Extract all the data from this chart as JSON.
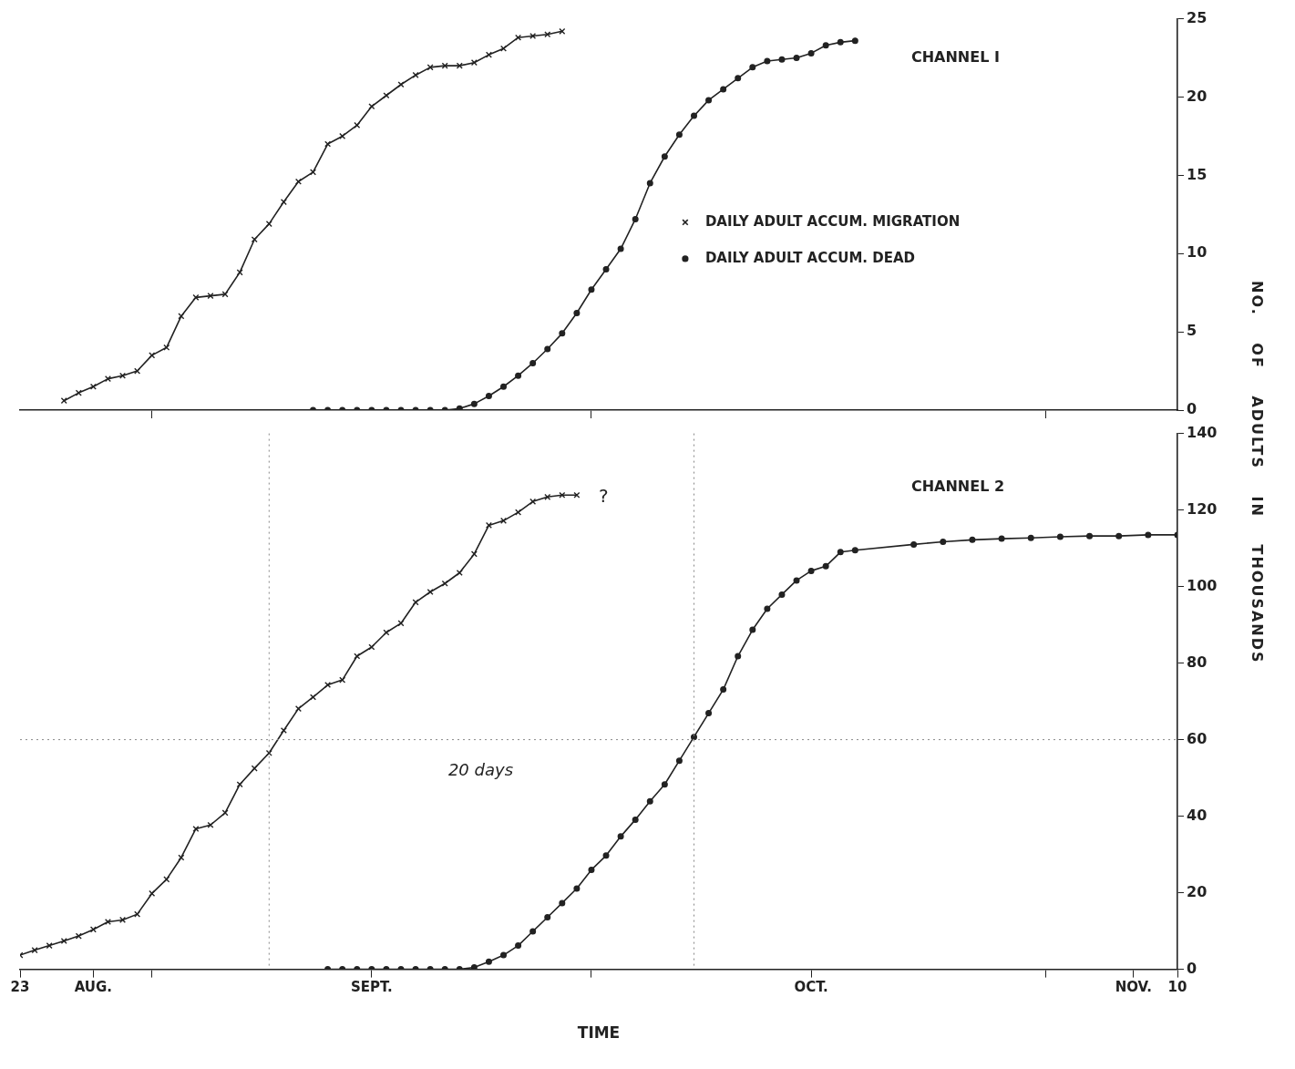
{
  "chart_data": [
    {
      "type": "line",
      "xlim": [
        "--08-23",
        "--11-10"
      ],
      "xticks": [
        {
          "value": "--09-01",
          "label": null
        },
        {
          "value": "--10-01",
          "label": null
        },
        {
          "value": "--11-01",
          "label": null
        }
      ],
      "ylim": [
        0,
        25
      ],
      "yticks": [
        0,
        5,
        10,
        15,
        20,
        25
      ],
      "tick_labels": "y",
      "grid": false,
      "legend": "right",
      "line_style": "solid",
      "annotations": [
        "CHANNEL I"
      ],
      "series": [
        {
          "name": "DAILY ADULT ACCUM. MIGRATION",
          "color": "#222222",
          "marker": "cross",
          "x": [
            "--08-26",
            "--08-27",
            "--08-28",
            "--08-29",
            "--08-30",
            "--08-31",
            "--09-01",
            "--09-02",
            "--09-03",
            "--09-04",
            "--09-05",
            "--09-06",
            "--09-07",
            "--09-08",
            "--09-09",
            "--09-10",
            "--09-11",
            "--09-12",
            "--09-13",
            "--09-14",
            "--09-15",
            "--09-16",
            "--09-17",
            "--09-18",
            "--09-19",
            "--09-20",
            "--09-21",
            "--09-22",
            "--09-23",
            "--09-24",
            "--09-25",
            "--09-26",
            "--09-27",
            "--09-28",
            "--09-29"
          ],
          "values": [
            0.6,
            1.1,
            1.5,
            2.0,
            2.2,
            2.5,
            3.5,
            4.0,
            6.0,
            7.2,
            7.3,
            7.4,
            8.8,
            10.9,
            11.9,
            13.3,
            14.6,
            15.2,
            17.0,
            17.5,
            18.2,
            19.4,
            20.1,
            20.8,
            21.4,
            21.9,
            22.0,
            22.0,
            22.2,
            22.7,
            23.1,
            23.8,
            23.9,
            24.0,
            24.2
          ]
        },
        {
          "name": "DAILY ADULT ACCUM. DEAD",
          "color": "#222222",
          "marker": "circle",
          "x": [
            "--09-12",
            "--09-13",
            "--09-14",
            "--09-15",
            "--09-16",
            "--09-17",
            "--09-18",
            "--09-19",
            "--09-20",
            "--09-21",
            "--09-22",
            "--09-23",
            "--09-24",
            "--09-25",
            "--09-26",
            "--09-27",
            "--09-28",
            "--09-29",
            "--09-30",
            "--10-01",
            "--10-02",
            "--10-03",
            "--10-04",
            "--10-05",
            "--10-06",
            "--10-07",
            "--10-08",
            "--10-09",
            "--10-10",
            "--10-11",
            "--10-12",
            "--10-13",
            "--10-14",
            "--10-15",
            "--10-16",
            "--10-17",
            "--10-18",
            "--10-19"
          ],
          "values": [
            0,
            0,
            0,
            0,
            0,
            0,
            0,
            0,
            0,
            0,
            0.1,
            0.4,
            0.9,
            1.5,
            2.2,
            3.0,
            3.9,
            4.9,
            6.2,
            7.7,
            9.0,
            10.3,
            12.2,
            14.5,
            16.2,
            17.6,
            18.8,
            19.8,
            20.5,
            21.2,
            21.9,
            22.3,
            22.4,
            22.5,
            22.8,
            23.3,
            23.5,
            23.6
          ]
        }
      ]
    },
    {
      "type": "line",
      "xlabel": "TIME",
      "ylabel": "NO. OF ADULTS IN THOUSANDS",
      "xlim": [
        "--08-23",
        "--11-10"
      ],
      "xticks": [
        {
          "value": "--08-23",
          "label": "23"
        },
        {
          "value": "--08-28",
          "label": "AUG."
        },
        {
          "value": "--09-01",
          "label": null
        },
        {
          "value": "--09-16",
          "label": "SEPT."
        },
        {
          "value": "--10-01",
          "label": null
        },
        {
          "value": "--10-16",
          "label": "OCT."
        },
        {
          "value": "--11-01",
          "label": null
        },
        {
          "value": "--11-07",
          "label": "NOV."
        },
        {
          "value": "--11-10",
          "label": "10"
        }
      ],
      "ylim": [
        0,
        140
      ],
      "yticks": [
        0,
        20,
        40,
        60,
        80,
        100,
        120,
        140
      ],
      "grid": false,
      "line_style": "solid",
      "annotations": [
        "CHANNEL 2",
        "20 days",
        "?"
      ],
      "ref_lines": [
        {
          "axis": "y",
          "value": 60,
          "line_style": "dotted",
          "color": "#888888"
        },
        {
          "axis": "x",
          "value": "--09-09",
          "line_style": "dotted",
          "color": "#888888"
        },
        {
          "axis": "x",
          "value": "--10-08",
          "line_style": "dotted",
          "color": "#888888"
        }
      ],
      "series": [
        {
          "color": "#222222",
          "marker": "cross",
          "x": [
            "--08-23",
            "--08-24",
            "--08-25",
            "--08-26",
            "--08-27",
            "--08-28",
            "--08-29",
            "--08-30",
            "--08-31",
            "--09-01",
            "--09-02",
            "--09-03",
            "--09-04",
            "--09-05",
            "--09-06",
            "--09-07",
            "--09-08",
            "--09-09",
            "--09-10",
            "--09-11",
            "--09-12",
            "--09-13",
            "--09-14",
            "--09-15",
            "--09-16",
            "--09-17",
            "--09-18",
            "--09-19",
            "--09-20",
            "--09-21",
            "--09-22",
            "--09-23",
            "--09-24",
            "--09-25",
            "--09-26",
            "--09-27",
            "--09-28",
            "--09-29",
            "--09-30"
          ],
          "values": [
            3.7,
            5.0,
            6.2,
            7.4,
            8.7,
            10.4,
            12.4,
            12.9,
            14.4,
            19.8,
            23.5,
            29.2,
            36.7,
            37.7,
            40.9,
            48.3,
            52.5,
            56.5,
            62.4,
            68.1,
            71.1,
            74.3,
            75.6,
            81.8,
            84.2,
            88.0,
            90.4,
            95.9,
            98.6,
            100.8,
            103.6,
            108.5,
            116.0,
            117.2,
            119.4,
            122.2,
            123.4,
            123.9,
            123.9
          ]
        },
        {
          "color": "#222222",
          "marker": "circle",
          "x": [
            "--09-13",
            "--09-14",
            "--09-15",
            "--09-16",
            "--09-17",
            "--09-18",
            "--09-19",
            "--09-20",
            "--09-21",
            "--09-22",
            "--09-23",
            "--09-24",
            "--09-25",
            "--09-26",
            "--09-27",
            "--09-28",
            "--09-29",
            "--09-30",
            "--10-01",
            "--10-02",
            "--10-03",
            "--10-04",
            "--10-05",
            "--10-06",
            "--10-07",
            "--10-08",
            "--10-09",
            "--10-10",
            "--10-11",
            "--10-12",
            "--10-13",
            "--10-14",
            "--10-15",
            "--10-16",
            "--10-17",
            "--10-18",
            "--10-19",
            "--10-23",
            "--10-25",
            "--10-27",
            "--10-29",
            "--10-31",
            "--11-02",
            "--11-04",
            "--11-06",
            "--11-08",
            "--11-10"
          ],
          "values": [
            0,
            0,
            0,
            0,
            0,
            0,
            0,
            0,
            0,
            0,
            0.5,
            2.0,
            3.7,
            6.2,
            9.9,
            13.6,
            17.3,
            21.1,
            26.0,
            29.7,
            34.7,
            39.1,
            43.9,
            48.3,
            54.5,
            60.7,
            66.9,
            73.1,
            81.8,
            88.7,
            94.2,
            97.9,
            101.6,
            104.1,
            105.3,
            109.0,
            109.5,
            111.0,
            111.7,
            112.2,
            112.5,
            112.7,
            113.0,
            113.2,
            113.2,
            113.5,
            113.5
          ]
        }
      ]
    }
  ]
}
